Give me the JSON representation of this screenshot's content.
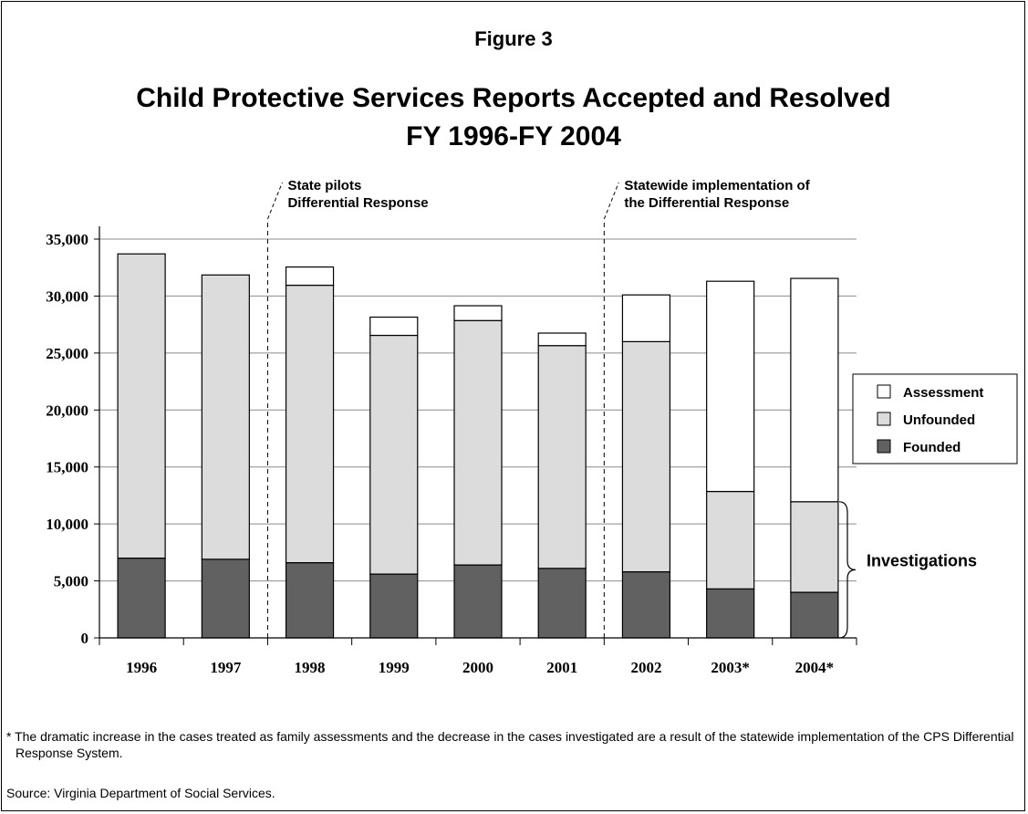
{
  "figure_label": "Figure 3",
  "chart_data": {
    "type": "bar",
    "stacked": true,
    "title": "Child Protective Services Reports Accepted and Resolved",
    "subtitle": "FY 1996-FY 2004",
    "categories": [
      "1996",
      "1997",
      "1998",
      "1999",
      "2000",
      "2001",
      "2002",
      "2003*",
      "2004*"
    ],
    "series": [
      {
        "name": "Founded",
        "color": "#616161",
        "values": [
          7000,
          6900,
          6600,
          5600,
          6400,
          6100,
          5800,
          4300,
          4000
        ]
      },
      {
        "name": "Unfounded",
        "color": "#dcdcdc",
        "values": [
          26700,
          24950,
          24350,
          20950,
          21450,
          19550,
          20200,
          8550,
          7950
        ]
      },
      {
        "name": "Assessment",
        "color": "#ffffff",
        "values": [
          0,
          0,
          1600,
          1600,
          1300,
          1100,
          4100,
          18450,
          19600
        ]
      }
    ],
    "ylim": [
      0,
      35000
    ],
    "yticks": [
      "0",
      "5,000",
      "10,000",
      "15,000",
      "20,000",
      "25,000",
      "30,000",
      "35,000"
    ],
    "grid": true,
    "legend_position": "right",
    "legend_order": [
      "Assessment",
      "Unfounded",
      "Founded"
    ],
    "annotations": [
      {
        "after_category": "1997",
        "lines": [
          "State pilots",
          "Differential Response"
        ]
      },
      {
        "after_category": "2001",
        "lines": [
          "Statewide implementation of",
          "the Differential Response"
        ]
      }
    ],
    "brace_label": "Investigations"
  },
  "footnote": "* The dramatic increase in the cases treated as family assessments and the decrease in the cases investigated are a result of the statewide implementation of the CPS Differential Response System.",
  "source": "Source: Virginia Department of Social Services."
}
